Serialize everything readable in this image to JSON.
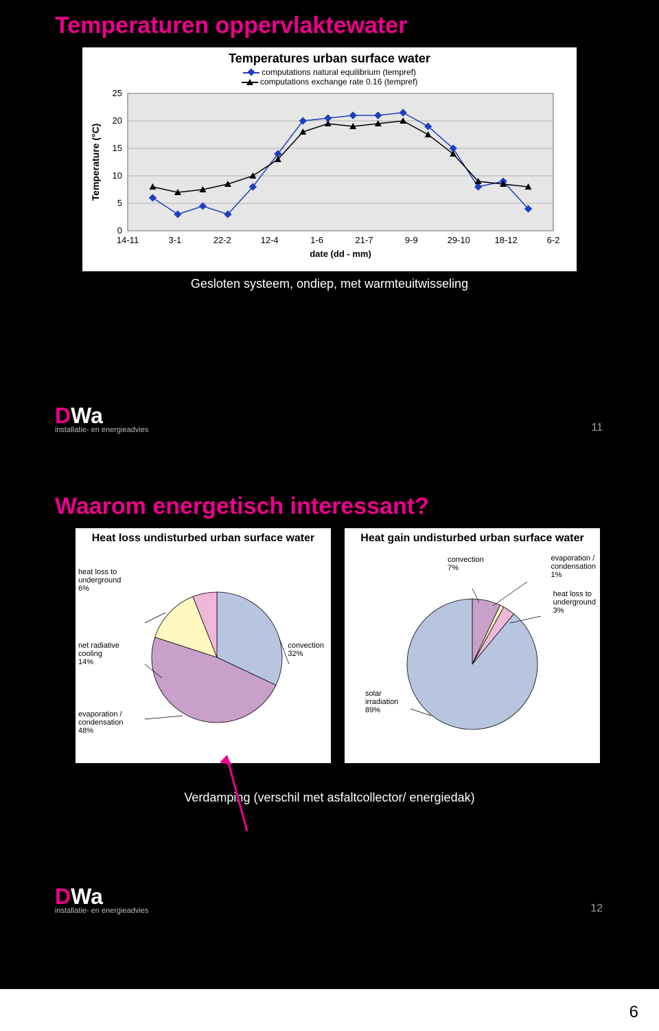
{
  "page_number": "6",
  "slide1": {
    "title": "Temperaturen oppervlaktewater",
    "chart_title": "Temperatures urban surface water",
    "legend": [
      {
        "label": "computations natural equilibrium (tempref)",
        "color": "#1f3fbf",
        "marker": "diamond"
      },
      {
        "label": "computations exchange rate 0.16 (tempref)",
        "color": "#000000",
        "marker": "triangle"
      }
    ],
    "y_label": "Temperature (°C)",
    "y_ticks": [
      0,
      5,
      10,
      15,
      20,
      25
    ],
    "x_label": "date (dd - mm)",
    "x_ticks": [
      "14-11",
      "3-1",
      "22-2",
      "12-4",
      "1-6",
      "21-7",
      "9-9",
      "29-10",
      "18-12",
      "6-2"
    ],
    "grid_color": "#808080",
    "plot_bg": "#e6e6e6",
    "series": [
      {
        "color": "#1f3fbf",
        "marker": "diamond",
        "values": [
          null,
          6,
          3,
          4.5,
          3,
          8,
          14,
          20,
          20.5,
          21,
          21,
          21.5,
          19,
          15,
          8,
          9,
          4,
          null
        ]
      },
      {
        "color": "#000000",
        "marker": "triangle",
        "values": [
          null,
          8,
          7,
          7.5,
          8.5,
          10,
          13,
          18,
          19.5,
          19,
          19.5,
          20,
          17.5,
          14,
          9,
          8.5,
          8,
          null
        ]
      }
    ],
    "caption": "Gesloten systeem, ondiep, met warmteuitwisseling",
    "slide_number": "11"
  },
  "slide2": {
    "title": "Waarom energetisch interessant?",
    "pie_loss": {
      "title": "Heat loss undisturbed urban surface water",
      "slices": [
        {
          "label": "evaporation / condensation",
          "pct": 48,
          "color": "#c9a0c9"
        },
        {
          "label": "convection",
          "pct": 32,
          "color": "#b8c5e0"
        },
        {
          "label": "heat loss to underground",
          "pct": 6,
          "color": "#f0b8d8"
        },
        {
          "label": "net radiative cooling",
          "pct": 14,
          "color": "#fff8c0"
        }
      ]
    },
    "pie_gain": {
      "title": "Heat gain undisturbed urban surface water",
      "slices": [
        {
          "label": "solar irradiation",
          "pct": 89,
          "color": "#b8c5e0"
        },
        {
          "label": "convection",
          "pct": 7,
          "color": "#c9a0c9"
        },
        {
          "label": "evaporation / condensation",
          "pct": 1,
          "color": "#fff8c0"
        },
        {
          "label": "heat loss to underground",
          "pct": 3,
          "color": "#f0b8d8"
        }
      ]
    },
    "arrow_note": "Verdamping (verschil met asfaltcollector/ energiedak)",
    "slide_number": "12"
  }
}
